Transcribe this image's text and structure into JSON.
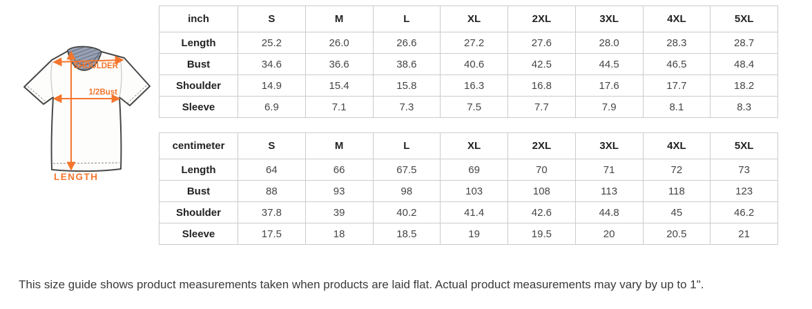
{
  "diagram": {
    "labels": {
      "shoulder": "SHOULDER",
      "half_bust": "1/2Bust",
      "length": "LENGTH"
    },
    "accent_color": "#f4752c",
    "collar_color": "#9aa3b5",
    "outline_color": "#474747",
    "body_color": "#fdfdfc"
  },
  "chart_data": [
    {
      "type": "table",
      "unit": "inch",
      "columns": [
        "inch",
        "S",
        "M",
        "L",
        "XL",
        "2XL",
        "3XL",
        "4XL",
        "5XL"
      ],
      "rows": [
        [
          "Length",
          "25.2",
          "26.0",
          "26.6",
          "27.2",
          "27.6",
          "28.0",
          "28.3",
          "28.7"
        ],
        [
          "Bust",
          "34.6",
          "36.6",
          "38.6",
          "40.6",
          "42.5",
          "44.5",
          "46.5",
          "48.4"
        ],
        [
          "Shoulder",
          "14.9",
          "15.4",
          "15.8",
          "16.3",
          "16.8",
          "17.6",
          "17.7",
          "18.2"
        ],
        [
          "Sleeve",
          "6.9",
          "7.1",
          "7.3",
          "7.5",
          "7.7",
          "7.9",
          "8.1",
          "8.3"
        ]
      ]
    },
    {
      "type": "table",
      "unit": "centimeter",
      "columns": [
        "centimeter",
        "S",
        "M",
        "L",
        "XL",
        "2XL",
        "3XL",
        "4XL",
        "5XL"
      ],
      "rows": [
        [
          "Length",
          "64",
          "66",
          "67.5",
          "69",
          "70",
          "71",
          "72",
          "73"
        ],
        [
          "Bust",
          "88",
          "93",
          "98",
          "103",
          "108",
          "113",
          "118",
          "123"
        ],
        [
          "Shoulder",
          "37.8",
          "39",
          "40.2",
          "41.4",
          "42.6",
          "44.8",
          "45",
          "46.2"
        ],
        [
          "Sleeve",
          "17.5",
          "18",
          "18.5",
          "19",
          "19.5",
          "20",
          "20.5",
          "21"
        ]
      ]
    }
  ],
  "footer": {
    "note": "This size guide shows product measurements taken when products are laid flat. Actual product measurements may vary by up to 1\"."
  }
}
